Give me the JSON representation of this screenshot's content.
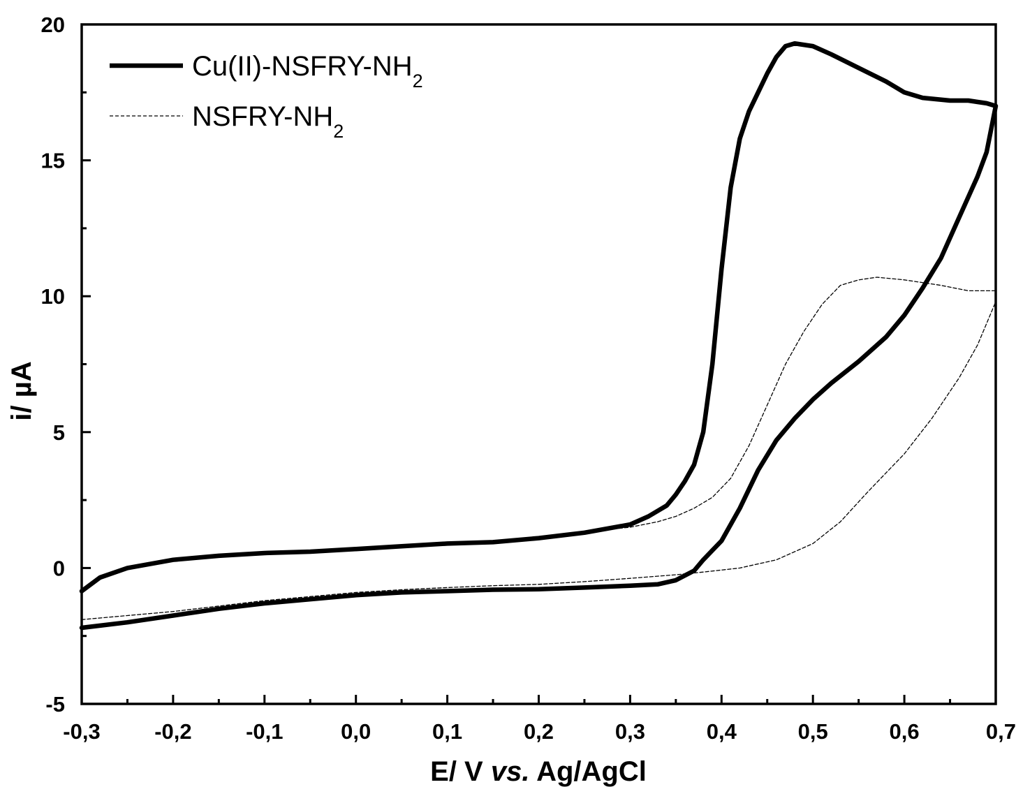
{
  "chart_data": {
    "type": "line",
    "xlabel": {
      "prefix": "E/ V ",
      "italic": "vs.",
      "suffix": " Ag/AgCl"
    },
    "ylabel": "i/ µA",
    "xlim": [
      -0.3,
      0.7
    ],
    "ylim": [
      -5,
      20
    ],
    "x_ticks": [
      {
        "value": -0.3,
        "label": "-0,3"
      },
      {
        "value": -0.2,
        "label": "-0,2"
      },
      {
        "value": -0.1,
        "label": "-0,1"
      },
      {
        "value": 0.0,
        "label": "0,0"
      },
      {
        "value": 0.1,
        "label": "0,1"
      },
      {
        "value": 0.2,
        "label": "0,2"
      },
      {
        "value": 0.3,
        "label": "0,3"
      },
      {
        "value": 0.4,
        "label": "0,4"
      },
      {
        "value": 0.5,
        "label": "0,5"
      },
      {
        "value": 0.6,
        "label": "0,6"
      },
      {
        "value": 0.7,
        "label": "0,7"
      }
    ],
    "y_ticks": [
      {
        "value": -5,
        "label": "-5"
      },
      {
        "value": 0,
        "label": "0"
      },
      {
        "value": 5,
        "label": "5"
      },
      {
        "value": 10,
        "label": "10"
      },
      {
        "value": 15,
        "label": "15"
      },
      {
        "value": 20,
        "label": "20"
      }
    ],
    "grid": false,
    "legend_position": "top-left",
    "series": [
      {
        "name": "Cu(II)-NSFRY-NH",
        "name_sub": "2",
        "style": "solid-thick",
        "color": "#000000",
        "points": [
          [
            -0.3,
            -2.2
          ],
          [
            -0.25,
            -2.0
          ],
          [
            -0.2,
            -1.75
          ],
          [
            -0.15,
            -1.5
          ],
          [
            -0.1,
            -1.3
          ],
          [
            -0.05,
            -1.15
          ],
          [
            0.0,
            -1.0
          ],
          [
            0.05,
            -0.9
          ],
          [
            0.1,
            -0.85
          ],
          [
            0.15,
            -0.8
          ],
          [
            0.2,
            -0.78
          ],
          [
            0.25,
            -0.72
          ],
          [
            0.3,
            -0.65
          ],
          [
            0.33,
            -0.6
          ],
          [
            0.35,
            -0.45
          ],
          [
            0.37,
            -0.1
          ],
          [
            0.38,
            0.3
          ],
          [
            0.4,
            1.0
          ],
          [
            0.42,
            2.2
          ],
          [
            0.44,
            3.6
          ],
          [
            0.46,
            4.7
          ],
          [
            0.48,
            5.5
          ],
          [
            0.5,
            6.2
          ],
          [
            0.52,
            6.8
          ],
          [
            0.55,
            7.6
          ],
          [
            0.58,
            8.5
          ],
          [
            0.6,
            9.3
          ],
          [
            0.62,
            10.3
          ],
          [
            0.64,
            11.4
          ],
          [
            0.66,
            12.9
          ],
          [
            0.68,
            14.4
          ],
          [
            0.69,
            15.3
          ],
          [
            0.7,
            17.0
          ],
          [
            0.69,
            17.1
          ],
          [
            0.67,
            17.2
          ],
          [
            0.65,
            17.2
          ],
          [
            0.62,
            17.3
          ],
          [
            0.6,
            17.5
          ],
          [
            0.58,
            17.9
          ],
          [
            0.55,
            18.4
          ],
          [
            0.52,
            18.9
          ],
          [
            0.5,
            19.2
          ],
          [
            0.48,
            19.3
          ],
          [
            0.47,
            19.2
          ],
          [
            0.46,
            18.8
          ],
          [
            0.45,
            18.2
          ],
          [
            0.44,
            17.5
          ],
          [
            0.43,
            16.8
          ],
          [
            0.42,
            15.8
          ],
          [
            0.41,
            14.0
          ],
          [
            0.4,
            11.0
          ],
          [
            0.39,
            7.5
          ],
          [
            0.38,
            5.0
          ],
          [
            0.37,
            3.8
          ],
          [
            0.36,
            3.2
          ],
          [
            0.35,
            2.7
          ],
          [
            0.34,
            2.3
          ],
          [
            0.32,
            1.9
          ],
          [
            0.3,
            1.6
          ],
          [
            0.25,
            1.3
          ],
          [
            0.2,
            1.1
          ],
          [
            0.15,
            0.95
          ],
          [
            0.1,
            0.9
          ],
          [
            0.05,
            0.8
          ],
          [
            0.0,
            0.7
          ],
          [
            -0.05,
            0.6
          ],
          [
            -0.1,
            0.55
          ],
          [
            -0.15,
            0.45
          ],
          [
            -0.2,
            0.3
          ],
          [
            -0.25,
            0.0
          ],
          [
            -0.28,
            -0.35
          ],
          [
            -0.3,
            -0.85
          ]
        ]
      },
      {
        "name": "NSFRY-NH",
        "name_sub": "2",
        "style": "dashed-thin",
        "color": "#000000",
        "points": [
          [
            -0.3,
            -1.9
          ],
          [
            -0.25,
            -1.75
          ],
          [
            -0.2,
            -1.6
          ],
          [
            -0.15,
            -1.4
          ],
          [
            -0.1,
            -1.2
          ],
          [
            -0.05,
            -1.05
          ],
          [
            0.0,
            -0.9
          ],
          [
            0.05,
            -0.8
          ],
          [
            0.1,
            -0.72
          ],
          [
            0.15,
            -0.65
          ],
          [
            0.2,
            -0.6
          ],
          [
            0.25,
            -0.5
          ],
          [
            0.3,
            -0.38
          ],
          [
            0.35,
            -0.25
          ],
          [
            0.38,
            -0.15
          ],
          [
            0.42,
            0.0
          ],
          [
            0.46,
            0.3
          ],
          [
            0.5,
            0.9
          ],
          [
            0.53,
            1.7
          ],
          [
            0.56,
            2.8
          ],
          [
            0.6,
            4.2
          ],
          [
            0.63,
            5.5
          ],
          [
            0.66,
            7.0
          ],
          [
            0.68,
            8.2
          ],
          [
            0.7,
            9.8
          ],
          [
            0.7,
            10.2
          ],
          [
            0.67,
            10.2
          ],
          [
            0.64,
            10.4
          ],
          [
            0.6,
            10.6
          ],
          [
            0.57,
            10.7
          ],
          [
            0.55,
            10.6
          ],
          [
            0.53,
            10.4
          ],
          [
            0.51,
            9.7
          ],
          [
            0.49,
            8.7
          ],
          [
            0.47,
            7.5
          ],
          [
            0.45,
            6.0
          ],
          [
            0.43,
            4.5
          ],
          [
            0.41,
            3.3
          ],
          [
            0.39,
            2.6
          ],
          [
            0.37,
            2.2
          ],
          [
            0.35,
            1.9
          ],
          [
            0.33,
            1.7
          ],
          [
            0.3,
            1.5
          ],
          [
            0.27,
            1.4
          ]
        ]
      }
    ]
  }
}
